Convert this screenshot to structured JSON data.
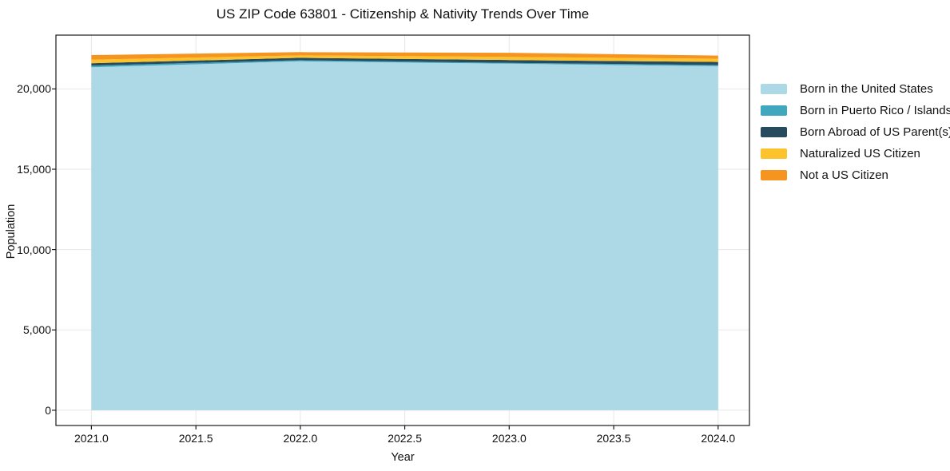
{
  "title": "US ZIP Code 63801 - Citizenship & Nativity Trends Over Time",
  "style": {
    "background": "#ffffff",
    "spine_color": "#1a1a1a",
    "grid_color": "#e7e7e7",
    "text_color": "#111111"
  },
  "chart_data": {
    "type": "area",
    "stacked": true,
    "title": "US ZIP Code 63801 - Citizenship & Nativity Trends Over Time",
    "xlabel": "Year",
    "ylabel": "Population",
    "x": [
      2021,
      2022,
      2023,
      2024
    ],
    "series": [
      {
        "name": "Born in the United States",
        "color": "#ADD8E6",
        "values": [
          21350,
          21720,
          21570,
          21410
        ]
      },
      {
        "name": "Born in Puerto Rico / Islands",
        "color": "#41A7BF",
        "values": [
          100,
          70,
          50,
          80
        ]
      },
      {
        "name": "Born Abroad of US Parent(s)",
        "color": "#264A5E",
        "values": [
          150,
          150,
          180,
          190
        ]
      },
      {
        "name": "Naturalized US Citizen",
        "color": "#FCC32D",
        "values": [
          220,
          150,
          200,
          200
        ]
      },
      {
        "name": "Not a US Citizen",
        "color": "#F5941F",
        "values": [
          290,
          200,
          250,
          200
        ]
      }
    ],
    "totals": [
      22110,
      22290,
      22250,
      22080
    ],
    "xlim": [
      2020.83,
      2024.15
    ],
    "ylim": [
      -950,
      23350
    ],
    "x_ticks": [
      2021.0,
      2021.5,
      2022.0,
      2022.5,
      2023.0,
      2023.5,
      2024.0
    ],
    "x_tick_labels": [
      "2021.0",
      "2021.5",
      "2022.0",
      "2022.5",
      "2023.0",
      "2023.5",
      "2024.0"
    ],
    "y_ticks": [
      0,
      5000,
      10000,
      15000,
      20000
    ],
    "y_tick_labels": [
      "0",
      "5,000",
      "10,000",
      "15,000",
      "20,000"
    ],
    "grid": true,
    "legend_position": "outside-right"
  }
}
